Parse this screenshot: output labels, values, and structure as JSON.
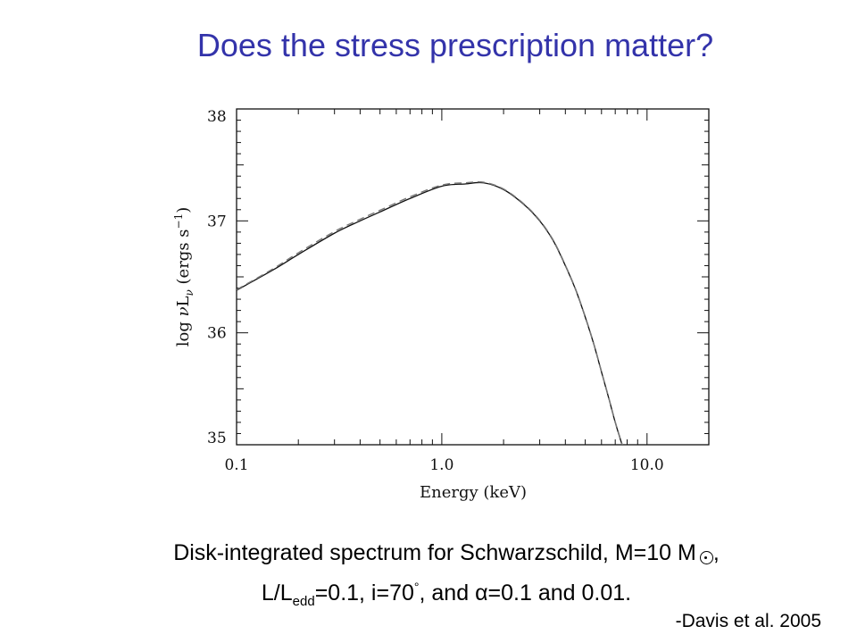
{
  "slide": {
    "title": "Does the stress prescription matter?",
    "caption": {
      "line1_text": "Disk-integrated spectrum for Schwarzschild, M=10 M",
      "line1_end": ",",
      "line2_a": "L/L",
      "line2_sub": "edd",
      "line2_b": "=0.1, i=70",
      "line2_sup": "°",
      "line2_c": ", and ",
      "alpha": "α",
      "line2_d": "=0.1 and 0.01."
    },
    "credit": "-Davis et al. 2005",
    "sun_icon": "sun-symbol-icon"
  },
  "chart_data": {
    "type": "line",
    "xscale": "log",
    "xlim": [
      0.1,
      20
    ],
    "ylim": [
      35,
      38
    ],
    "xlabel": "Energy (keV)",
    "ylabel": "log νL_ν (ergs s⁻¹)",
    "ylabel_parts": {
      "a": "log ",
      "nu": "ν",
      "L": "L",
      "sub": "ν",
      "b": " (ergs s",
      "sup": "−1",
      "c": ")"
    },
    "x_ticks": [
      {
        "value": 0.1,
        "label": "0.1"
      },
      {
        "value": 1.0,
        "label": "1.0"
      },
      {
        "value": 10.0,
        "label": "10.0"
      }
    ],
    "y_ticks": [
      {
        "value": 35,
        "label": "35"
      },
      {
        "value": 36,
        "label": "36"
      },
      {
        "value": 37,
        "label": "37"
      },
      {
        "value": 38,
        "label": "38"
      }
    ],
    "grid": false,
    "series": [
      {
        "style": "solid",
        "color": "#111111",
        "x": [
          0.1,
          0.15,
          0.2,
          0.3,
          0.4,
          0.5,
          0.7,
          1.0,
          1.3,
          1.6,
          2.0,
          2.5,
          3.0,
          3.5,
          4.0,
          4.5,
          5.0,
          5.5,
          6.0,
          6.5,
          7.0,
          7.5,
          7.7
        ],
        "y": [
          36.38,
          36.56,
          36.7,
          36.89,
          37.0,
          37.08,
          37.2,
          37.31,
          37.33,
          37.34,
          37.28,
          37.15,
          37.0,
          36.82,
          36.6,
          36.38,
          36.14,
          35.9,
          35.65,
          35.42,
          35.2,
          35.02,
          34.96
        ]
      },
      {
        "style": "dashed",
        "color": "#777777",
        "x": [
          0.1,
          0.15,
          0.2,
          0.3,
          0.4,
          0.5,
          0.7,
          1.0,
          1.3,
          1.6,
          2.0,
          2.5,
          3.0,
          3.5,
          4.0,
          4.5,
          5.0,
          5.5,
          6.0,
          6.5,
          7.0,
          7.5,
          7.7
        ],
        "y": [
          36.385,
          36.57,
          36.715,
          36.905,
          37.015,
          37.095,
          37.215,
          37.32,
          37.34,
          37.345,
          37.285,
          37.155,
          37.005,
          36.825,
          36.605,
          36.385,
          36.145,
          35.905,
          35.655,
          35.425,
          35.205,
          35.025,
          34.965
        ]
      }
    ]
  }
}
